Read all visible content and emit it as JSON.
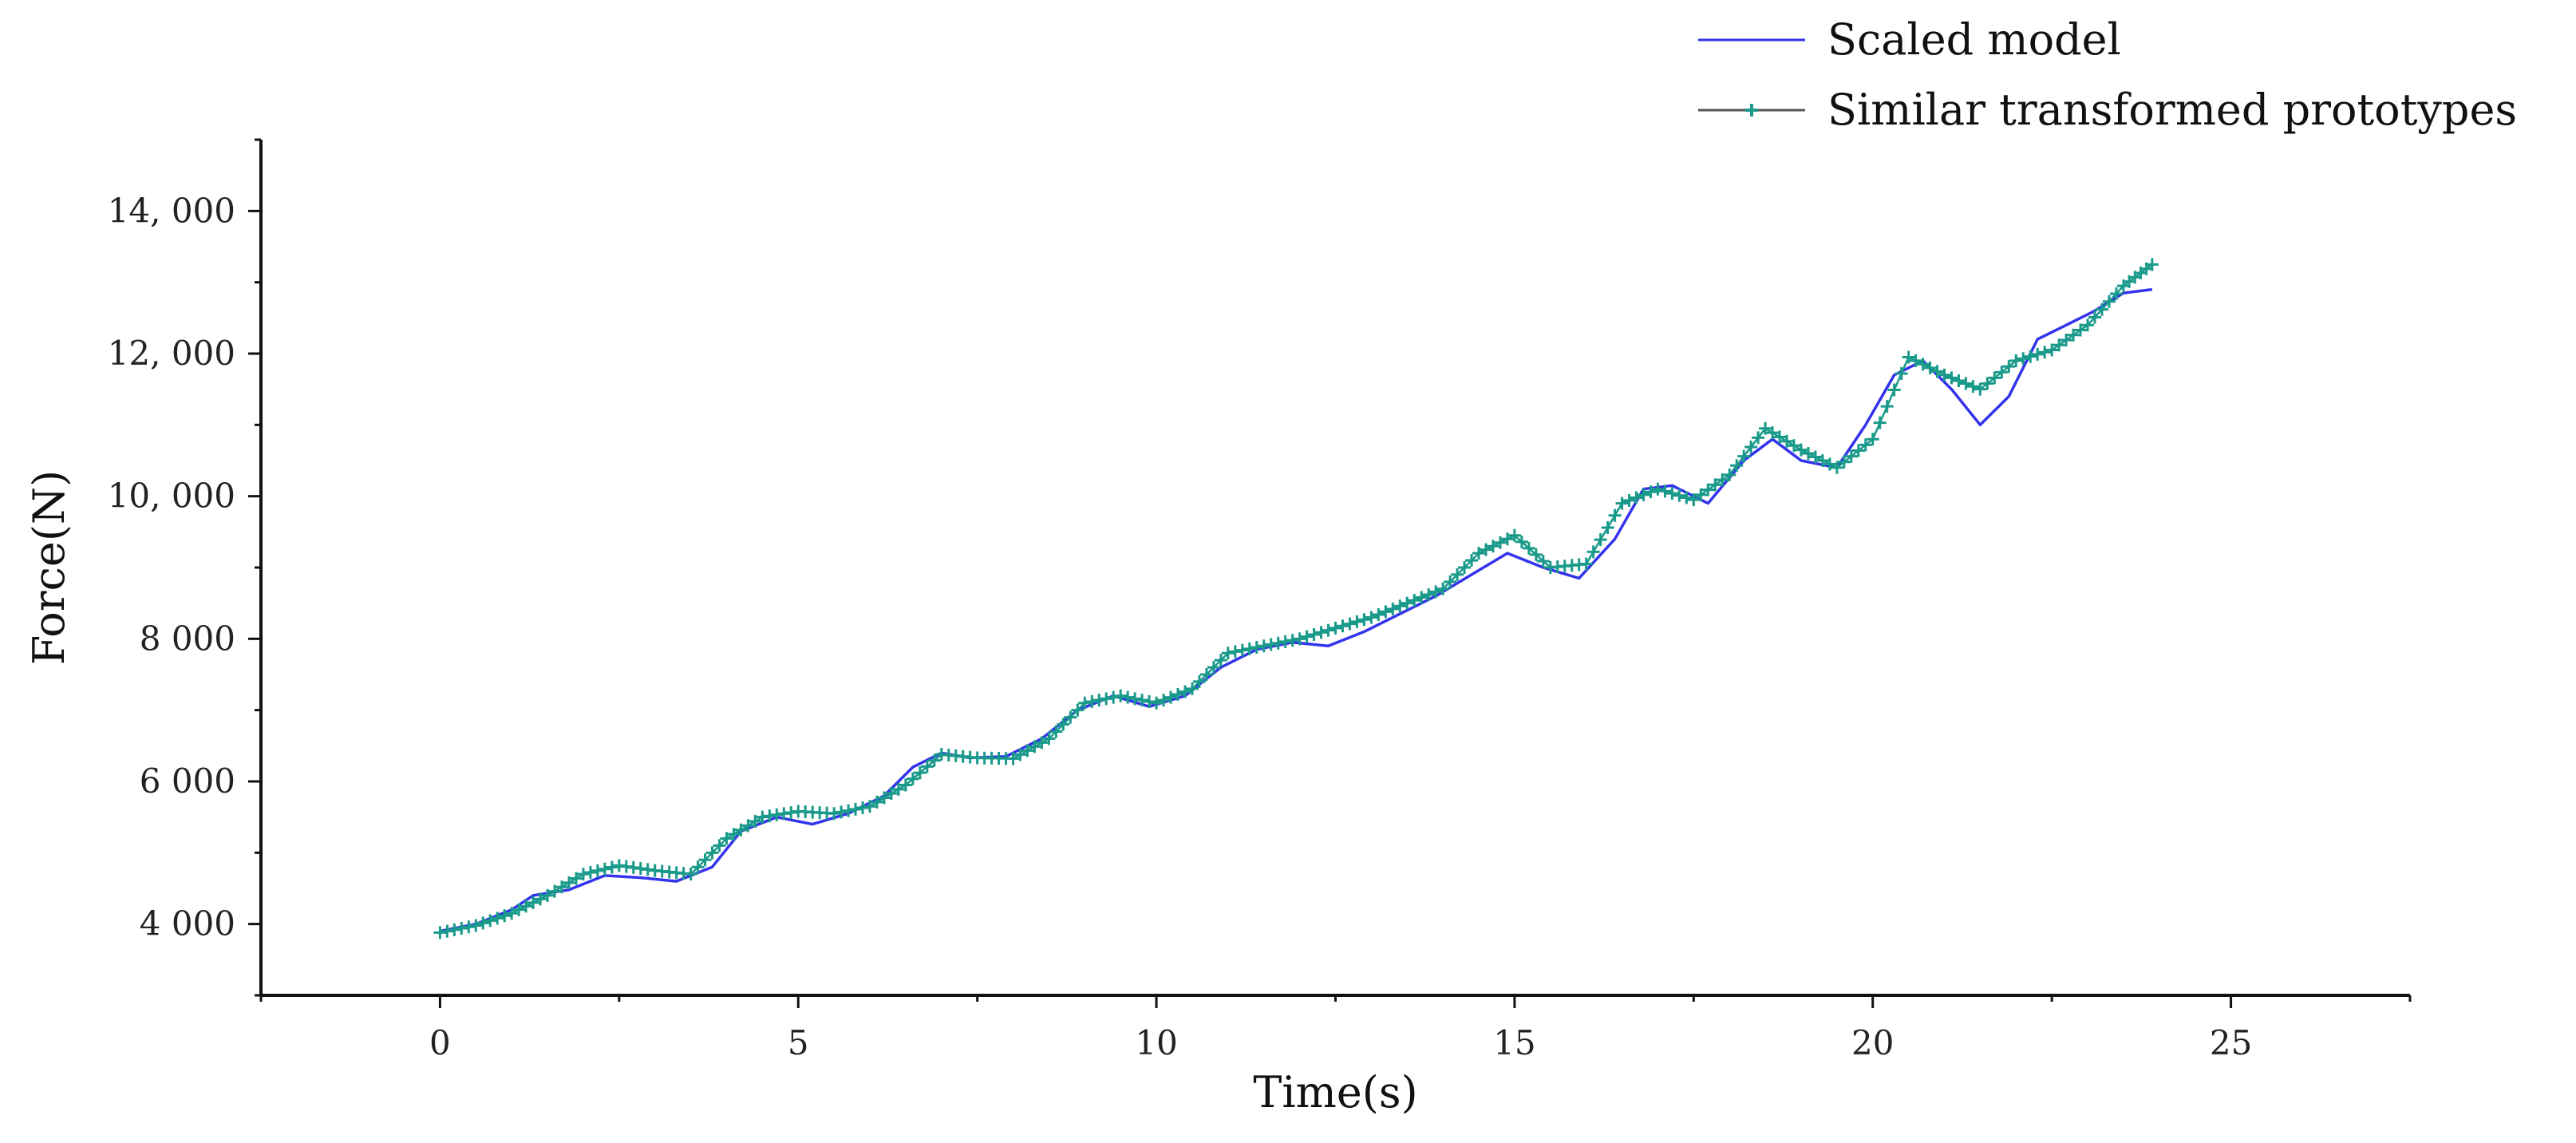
{
  "chart_data": {
    "type": "line",
    "title": "",
    "xlabel": "Time(s)",
    "ylabel": "Force(N)",
    "xlim": [
      -2.5,
      27.5
    ],
    "ylim": [
      3000,
      15000
    ],
    "xticks": [
      0,
      5,
      10,
      15,
      20,
      25
    ],
    "xtick_labels": [
      "0",
      "5",
      "10",
      "15",
      "20",
      "25"
    ],
    "yticks": [
      4000,
      6000,
      8000,
      10000,
      12000,
      14000
    ],
    "ytick_labels": [
      "4 000",
      "6 000",
      "8 000",
      "10, 000",
      "12, 000",
      "14, 000"
    ],
    "grid": false,
    "legend_position": "top-right",
    "series": [
      {
        "name": "Scaled model",
        "color": "#3333ee",
        "marker": "none",
        "x": [
          0,
          0.5,
          1.0,
          1.3,
          1.8,
          2.3,
          2.8,
          3.3,
          3.8,
          4.2,
          4.7,
          5.2,
          5.7,
          6.2,
          6.6,
          7.0,
          7.4,
          7.9,
          8.4,
          8.9,
          9.4,
          9.9,
          10.4,
          10.9,
          11.4,
          11.9,
          12.4,
          12.9,
          13.4,
          13.9,
          14.4,
          14.9,
          15.4,
          15.9,
          16.4,
          16.8,
          17.2,
          17.7,
          18.2,
          18.6,
          19.0,
          19.5,
          19.9,
          20.3,
          20.7,
          21.1,
          21.5,
          21.9,
          22.3,
          22.7,
          23.1,
          23.5,
          23.9
        ],
        "y": [
          3900,
          4000,
          4200,
          4400,
          4480,
          4680,
          4650,
          4600,
          4800,
          5300,
          5500,
          5400,
          5550,
          5800,
          6200,
          6400,
          6330,
          6350,
          6600,
          7000,
          7200,
          7050,
          7200,
          7600,
          7850,
          7950,
          7900,
          8100,
          8350,
          8600,
          8900,
          9200,
          9000,
          8850,
          9400,
          10100,
          10150,
          9900,
          10500,
          10800,
          10500,
          10400,
          11000,
          11700,
          11900,
          11500,
          11000,
          11400,
          12200,
          12400,
          12600,
          12850,
          12900
        ]
      },
      {
        "name": "Similar transformed prototypes",
        "color": "#1a9a8a",
        "marker": "+",
        "x": [
          0,
          0.5,
          1.0,
          1.5,
          2.0,
          2.5,
          3.0,
          3.5,
          4.0,
          4.5,
          5.0,
          5.5,
          6.0,
          6.5,
          7.0,
          7.5,
          8.0,
          8.5,
          9.0,
          9.5,
          10.0,
          10.5,
          11.0,
          11.5,
          12.0,
          12.5,
          13.0,
          13.5,
          14.0,
          14.5,
          15.0,
          15.5,
          16.0,
          16.5,
          17.0,
          17.5,
          18.0,
          18.5,
          19.0,
          19.5,
          20.0,
          20.5,
          21.0,
          21.5,
          22.0,
          22.5,
          23.0,
          23.5,
          23.9
        ],
        "y": [
          3880,
          3980,
          4150,
          4400,
          4700,
          4820,
          4750,
          4700,
          5200,
          5500,
          5580,
          5550,
          5650,
          5950,
          6380,
          6330,
          6320,
          6600,
          7100,
          7200,
          7100,
          7300,
          7800,
          7900,
          8000,
          8150,
          8300,
          8500,
          8700,
          9200,
          9450,
          9000,
          9050,
          9900,
          10100,
          9950,
          10300,
          10950,
          10650,
          10400,
          10800,
          11950,
          11700,
          11500,
          11900,
          12050,
          12400,
          12950,
          13250
        ]
      }
    ]
  }
}
